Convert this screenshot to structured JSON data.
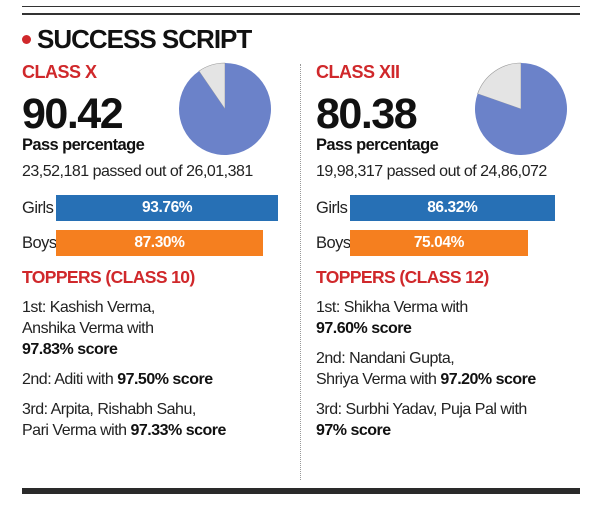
{
  "title": "SUCCESS SCRIPT",
  "colors": {
    "accent": "#d0282b",
    "girls": "#2770b5",
    "boys": "#f57f1f",
    "pie_fill": "#6b82c9",
    "pie_rest": "#e4e4e4"
  },
  "class_x": {
    "label": "CLASS X",
    "pass_pct": "90.42",
    "pass_label": "Pass percentage",
    "passed_text": "23,52,181 passed out of 26,01,381",
    "girls_label": "Girls",
    "girls_value": "93.76%",
    "boys_label": "Boys",
    "boys_value": "87.30%",
    "toppers_heading": "TOPPERS (CLASS 10)",
    "toppers": [
      {
        "line1": "1st: Kashish Verma,",
        "line2": "Anshika Verma with",
        "score": "97.83% score"
      },
      {
        "line1": "2nd: Aditi with",
        "score": "97.50% score"
      },
      {
        "line1": "3rd: Arpita, Rishabh Sahu,",
        "line2": "Pari Verma with",
        "score": "97.33% score"
      }
    ]
  },
  "class_xii": {
    "label": "CLASS XII",
    "pass_pct": "80.38",
    "pass_label": "Pass percentage",
    "passed_text": "19,98,317 passed out of 24,86,072",
    "girls_label": "Girls",
    "girls_value": "86.32%",
    "boys_label": "Boys",
    "boys_value": "75.04%",
    "toppers_heading": "TOPPERS (CLASS 12)",
    "toppers": [
      {
        "line1": "1st: Shikha Verma with",
        "score": "97.60% score"
      },
      {
        "line1": "2nd: Nandani Gupta,",
        "line2": "Shriya Verma with",
        "score": "97.20% score"
      },
      {
        "line1": "3rd: Surbhi Yadav, Puja Pal with",
        "score": "97% score"
      }
    ]
  },
  "chart_data": [
    {
      "type": "pie",
      "title": "CLASS X",
      "categories": [
        "Pass percentage",
        ""
      ],
      "values": [
        90.42,
        9.58
      ]
    },
    {
      "type": "bar",
      "title": "CLASS X",
      "categories": [
        "Girls",
        "Boys"
      ],
      "values": [
        93.76,
        87.3
      ],
      "ylim": [
        0,
        100
      ]
    },
    {
      "type": "pie",
      "title": "CLASS XII",
      "categories": [
        "Pass percentage",
        ""
      ],
      "values": [
        80.38,
        19.62
      ]
    },
    {
      "type": "bar",
      "title": "CLASS XII",
      "categories": [
        "Girls",
        "Boys"
      ],
      "values": [
        86.32,
        75.04
      ],
      "ylim": [
        0,
        100
      ]
    }
  ]
}
